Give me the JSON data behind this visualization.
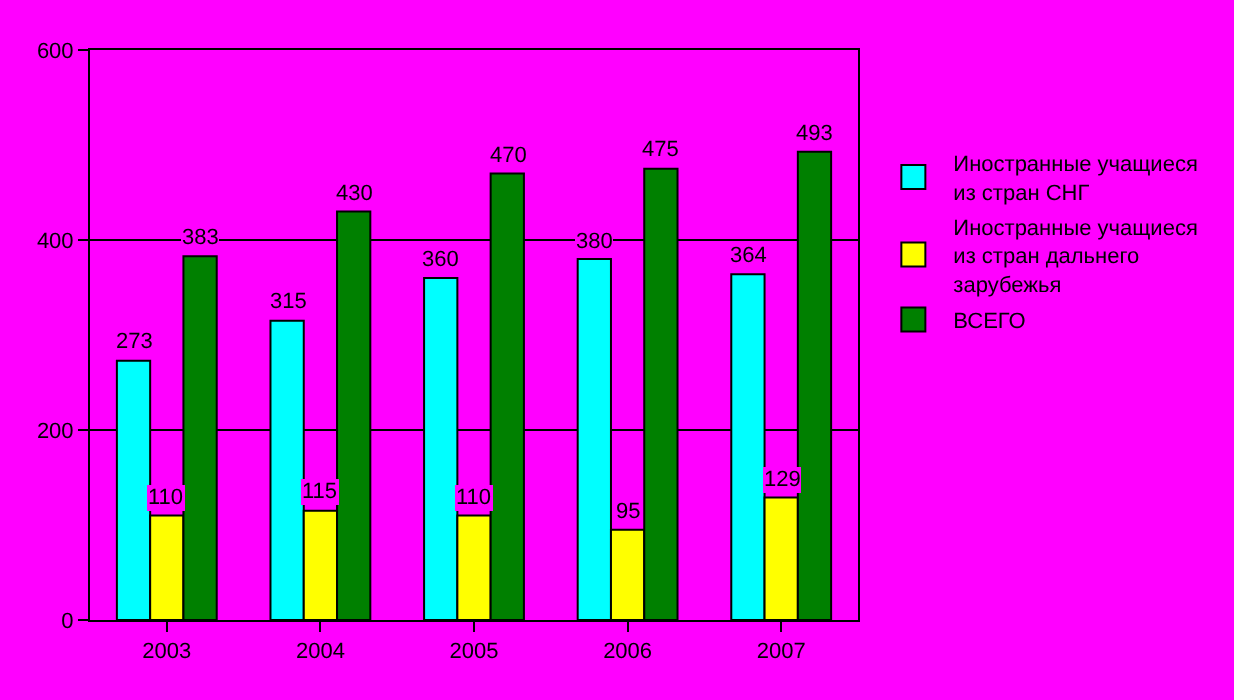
{
  "chart_data": {
    "type": "bar",
    "categories": [
      "2003",
      "2004",
      "2005",
      "2006",
      "2007"
    ],
    "series": [
      {
        "name": "Иностранные учащиеся из стран СНГ",
        "color": "#00ffff",
        "values": [
          273,
          315,
          360,
          380,
          364
        ]
      },
      {
        "name": "Иностранные учащиеся из стран дальнего зарубежья",
        "color": "#ffff00",
        "values": [
          110,
          115,
          110,
          95,
          129
        ]
      },
      {
        "name": "ВСЕГО",
        "color": "#008000",
        "values": [
          383,
          430,
          470,
          475,
          493
        ]
      }
    ],
    "ylim": [
      0,
      600
    ],
    "yticks": [
      0,
      200,
      400,
      600
    ],
    "grid": "y",
    "legend": "right",
    "data_labels": true
  }
}
